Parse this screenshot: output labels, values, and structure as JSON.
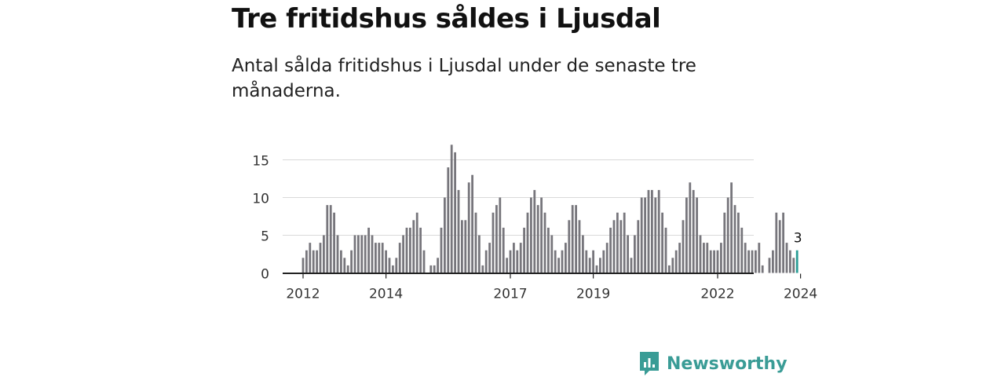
{
  "title": "Tre fritidshus såldes i Ljusdal",
  "subtitle": "Antal sålda fritidshus i Ljusdal under de senaste tre månaderna.",
  "brand": {
    "name": "Newsworthy",
    "logo_icon": "bar-chart-speech-bubble-icon",
    "color": "#3a9c96"
  },
  "colors": {
    "bar": "#77767c",
    "highlight": "#2a9d96",
    "grid": "#d9d9d9",
    "axis": "#222222"
  },
  "chart_data": {
    "type": "bar",
    "x_start": "2012-01",
    "frequency": "monthly",
    "values": [
      2,
      3,
      4,
      3,
      3,
      4,
      5,
      9,
      9,
      8,
      5,
      3,
      2,
      1,
      3,
      5,
      5,
      5,
      5,
      6,
      5,
      4,
      4,
      4,
      3,
      2,
      1,
      2,
      4,
      5,
      6,
      6,
      7,
      8,
      6,
      3,
      0,
      1,
      1,
      2,
      6,
      10,
      14,
      17,
      16,
      11,
      7,
      7,
      12,
      13,
      8,
      5,
      1,
      3,
      4,
      8,
      9,
      10,
      6,
      2,
      3,
      4,
      3,
      4,
      6,
      8,
      10,
      11,
      9,
      10,
      8,
      6,
      5,
      3,
      2,
      3,
      4,
      7,
      9,
      9,
      7,
      5,
      3,
      2,
      3,
      1,
      2,
      3,
      4,
      6,
      7,
      8,
      7,
      8,
      5,
      2,
      5,
      7,
      10,
      10,
      11,
      11,
      10,
      11,
      8,
      6,
      1,
      2,
      3,
      4,
      7,
      10,
      12,
      11,
      10,
      5,
      4,
      4,
      3,
      3,
      3,
      4,
      8,
      10,
      12,
      9,
      8,
      6,
      4,
      3,
      3,
      3,
      4,
      1,
      0,
      2,
      3,
      8,
      7,
      8,
      4,
      3,
      2,
      3
    ],
    "highlight_last": 1,
    "annotation": "3",
    "x_ticks": [
      "2012",
      "2014",
      "2017",
      "2019",
      "2022",
      "2024"
    ],
    "y_ticks": [
      "0",
      "5",
      "10",
      "15"
    ],
    "ylim": [
      0,
      17.5
    ],
    "grid": true
  }
}
